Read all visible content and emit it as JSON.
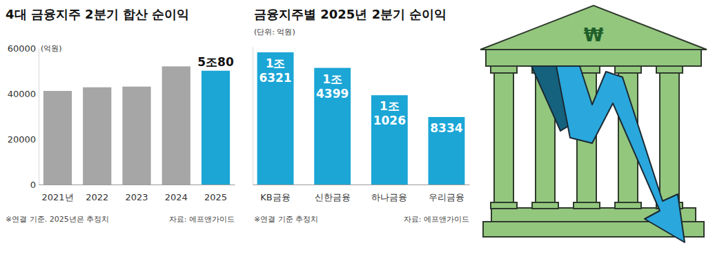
{
  "chart_data": [
    {
      "type": "bar",
      "title": "4대 금융지주 2분기 합산 순이익",
      "y_label": "(억원)",
      "categories": [
        "2021년",
        "2022",
        "2023",
        "2024",
        "2025"
      ],
      "values": [
        41200,
        42800,
        43100,
        52000,
        50080
      ],
      "value_labels": [
        null,
        null,
        null,
        null,
        "5조80"
      ],
      "colors": [
        "#a6a6a6",
        "#a6a6a6",
        "#a6a6a6",
        "#a6a6a6",
        "#1ba6d6"
      ],
      "ylim": [
        0,
        60000
      ],
      "yticks": [
        0,
        20000,
        40000,
        60000
      ],
      "grid": false,
      "data_labels": true,
      "notes": [
        "※연결 기준. 2025년은 추정치"
      ],
      "source": "자료: 에프앤가이드"
    },
    {
      "type": "bar",
      "title": "금융지주별 2025년 2분기 순이익",
      "subtitle": "(단위: 억원)",
      "categories": [
        "KB금융",
        "신한금융",
        "하나금융",
        "우리금융"
      ],
      "values": [
        16321,
        14399,
        11026,
        8334
      ],
      "value_labels": [
        "1조\n6321",
        "1조\n4399",
        "1조\n1026",
        "8334"
      ],
      "color": "#1ba6d6",
      "ylim": [
        0,
        17000
      ],
      "grid": false,
      "data_labels": true,
      "tick_labels": "x",
      "notes": [
        "※연결 기준 추정치"
      ],
      "source": "자료: 에프앤가이드"
    }
  ],
  "illustration": {
    "symbol": "₩"
  }
}
